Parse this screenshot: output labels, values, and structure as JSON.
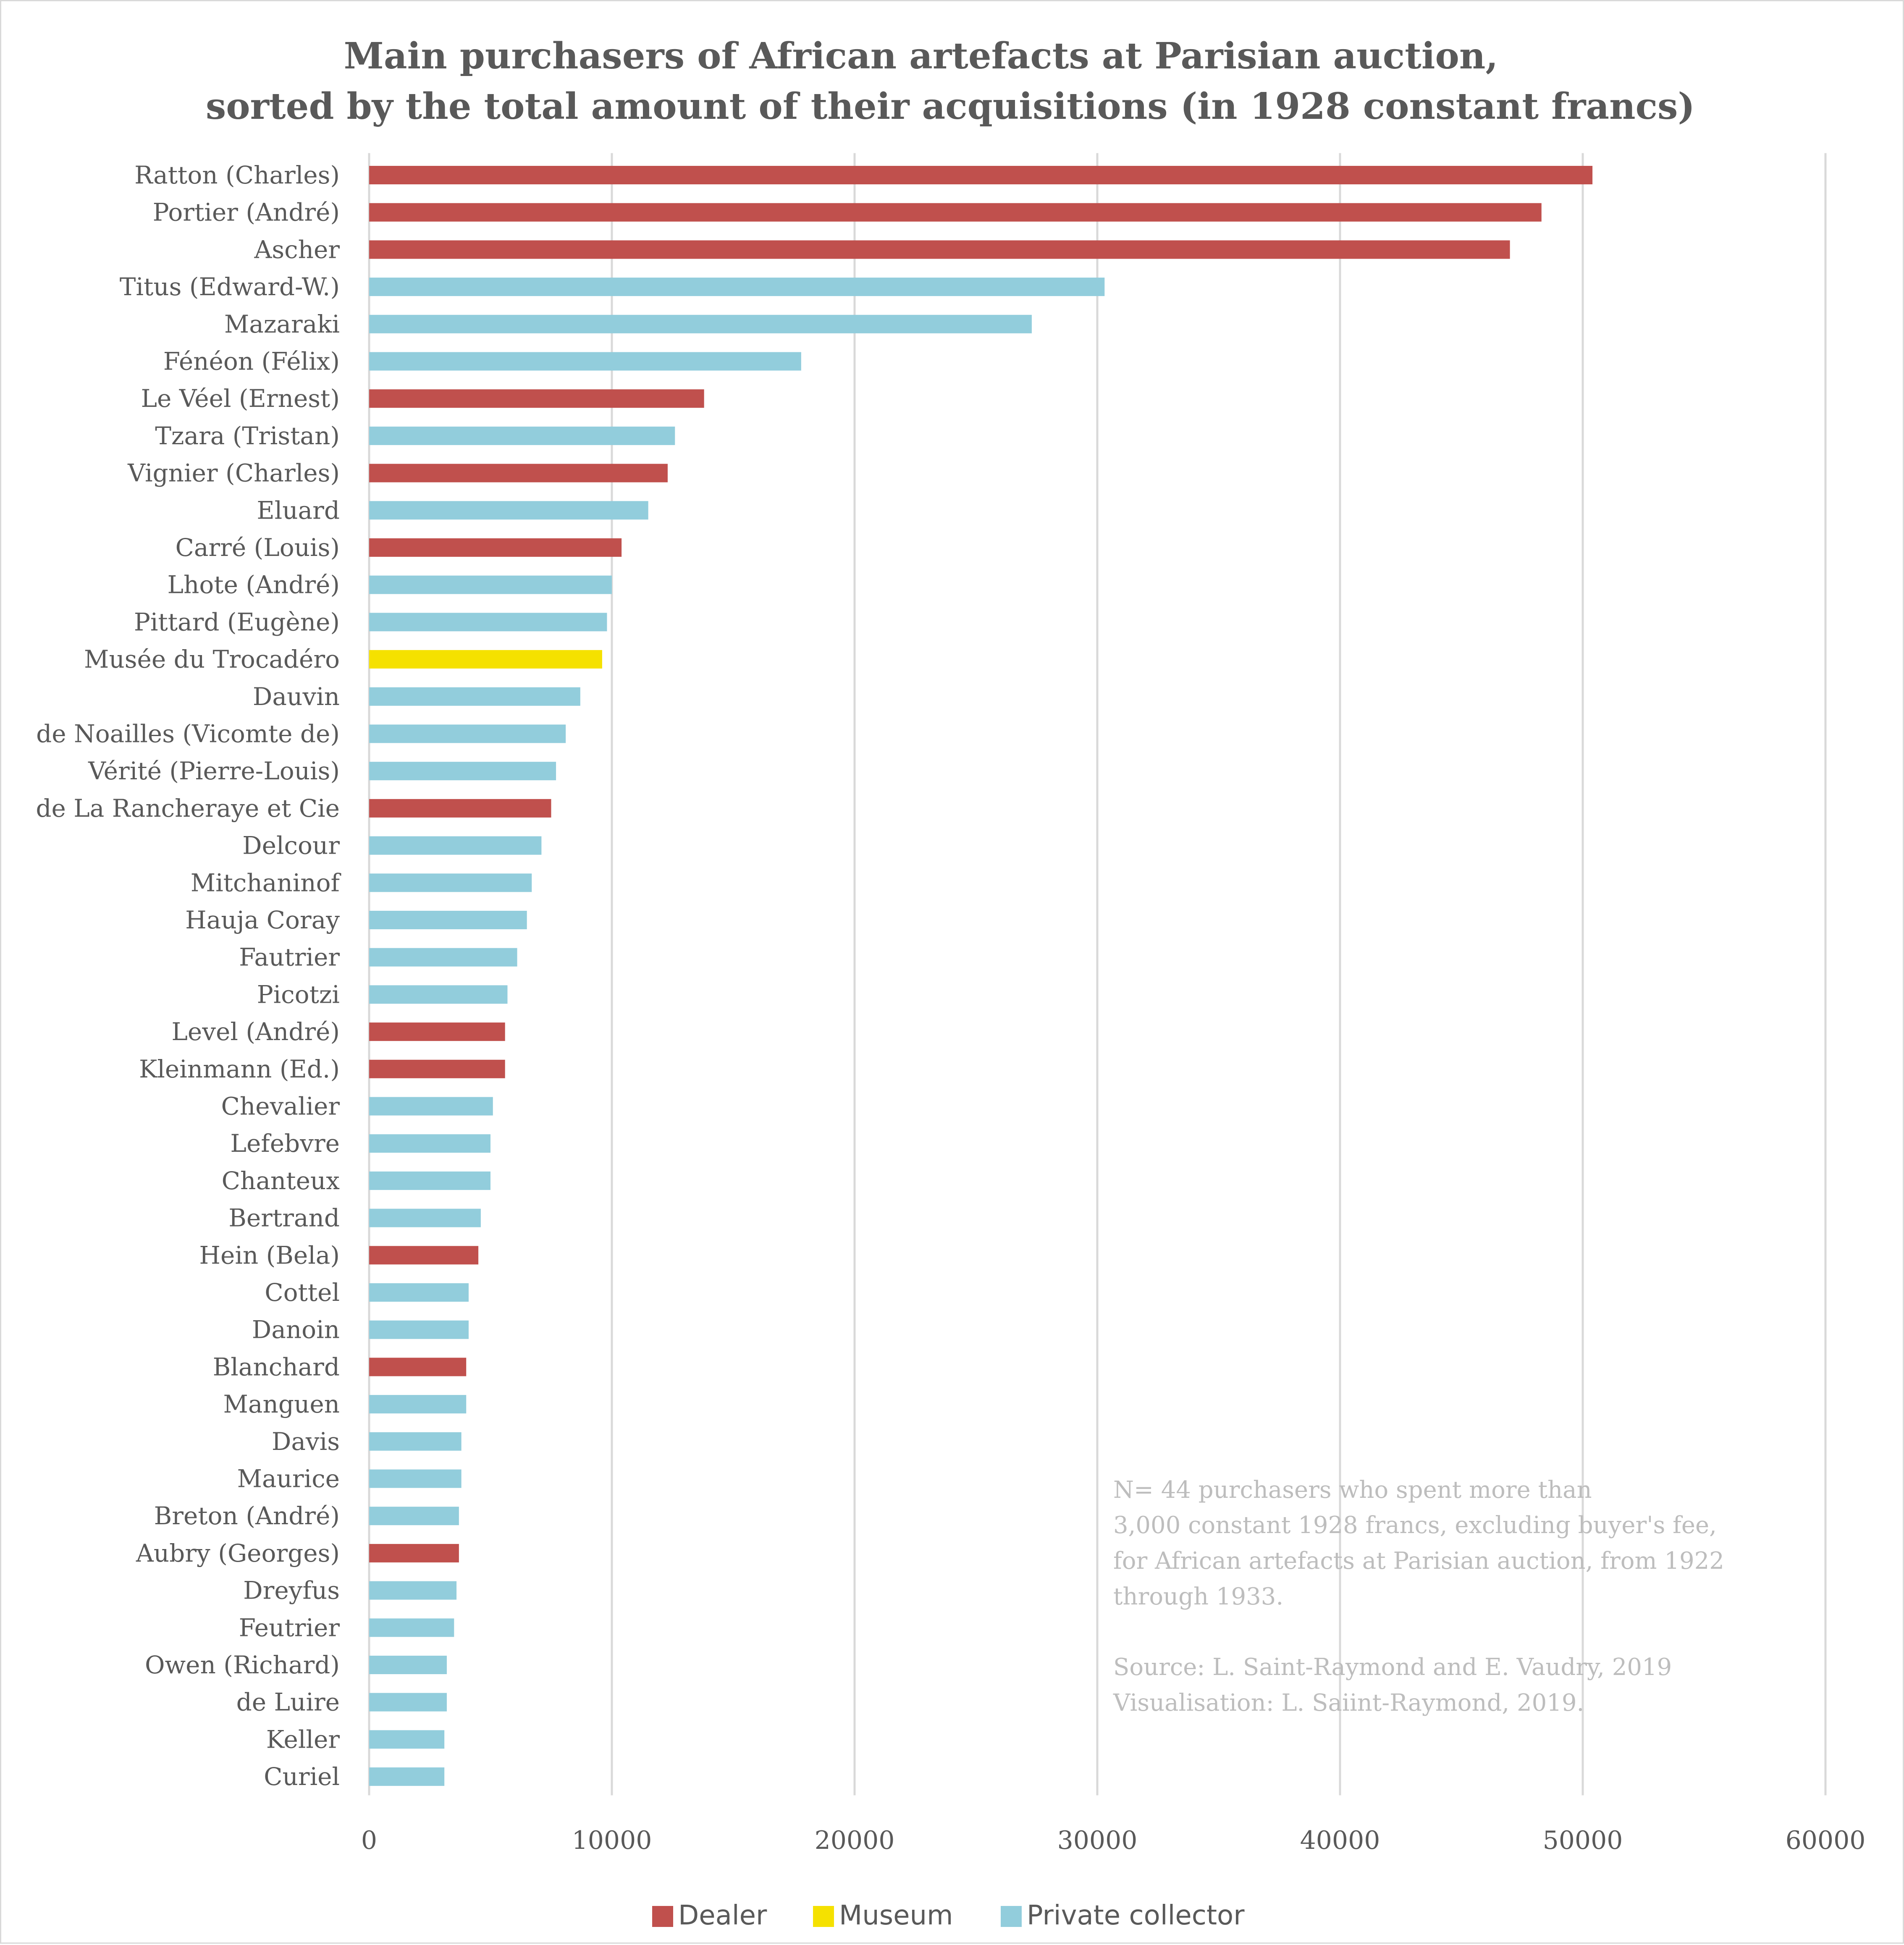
{
  "chart_data": {
    "type": "bar",
    "orientation": "horizontal",
    "title": [
      "Main purchasers of African artefacts at Parisian auction,",
      "sorted by the total amount of their acquisitions (in 1928 constant francs)"
    ],
    "xlabel": "",
    "ylabel": "",
    "xlim": [
      0,
      60000
    ],
    "x_ticks": [
      0,
      10000,
      20000,
      30000,
      40000,
      50000,
      60000
    ],
    "grid": "vertical",
    "legend_position": "bottom",
    "legend": [
      {
        "name": "Dealer",
        "color": "#c0504d"
      },
      {
        "name": "Museum",
        "color": "#f5e100"
      },
      {
        "name": "Private collector",
        "color": "#92cddc"
      }
    ],
    "categories": [
      "Ratton (Charles)",
      "Portier (André)",
      "Ascher",
      "Titus (Edward-W.)",
      "Mazaraki",
      "Fénéon (Félix)",
      "Le Véel (Ernest)",
      "Tzara (Tristan)",
      "Vignier (Charles)",
      "Eluard",
      "Carré (Louis)",
      "Lhote (André)",
      "Pittard (Eugène)",
      "Musée du Trocadéro",
      "Dauvin",
      "de Noailles (Vicomte de)",
      "Vérité (Pierre-Louis)",
      "de La Rancheraye et Cie",
      "Delcour",
      "Mitchaninof",
      "Hauja Coray",
      "Fautrier",
      "Picotzi",
      "Level (André)",
      "Kleinmann (Ed.)",
      "Chevalier",
      "Lefebvre",
      "Chanteux",
      "Bertrand",
      "Hein (Bela)",
      "Cottel",
      "Danoin",
      "Blanchard",
      "Manguen",
      "Davis",
      "Maurice",
      "Breton (André)",
      "Aubry (Georges)",
      "Dreyfus",
      "Feutrier",
      "Owen (Richard)",
      "de Luire",
      "Keller",
      "Curiel"
    ],
    "values": [
      50400,
      48300,
      47000,
      30300,
      27300,
      17800,
      13800,
      12600,
      12300,
      11500,
      10400,
      10000,
      9800,
      9600,
      8700,
      8100,
      7700,
      7500,
      7100,
      6700,
      6500,
      6100,
      5700,
      5600,
      5600,
      5100,
      5000,
      5000,
      4600,
      4500,
      4100,
      4100,
      4000,
      4000,
      3800,
      3800,
      3700,
      3700,
      3600,
      3500,
      3200,
      3200,
      3100,
      3100
    ],
    "types": [
      "Dealer",
      "Dealer",
      "Dealer",
      "Private collector",
      "Private collector",
      "Private collector",
      "Dealer",
      "Private collector",
      "Dealer",
      "Private collector",
      "Dealer",
      "Private collector",
      "Private collector",
      "Museum",
      "Private collector",
      "Private collector",
      "Private collector",
      "Dealer",
      "Private collector",
      "Private collector",
      "Private collector",
      "Private collector",
      "Private collector",
      "Dealer",
      "Dealer",
      "Private collector",
      "Private collector",
      "Private collector",
      "Private collector",
      "Dealer",
      "Private collector",
      "Private collector",
      "Dealer",
      "Private collector",
      "Private collector",
      "Private collector",
      "Private collector",
      "Dealer",
      "Private collector",
      "Private collector",
      "Private collector",
      "Private collector",
      "Private collector",
      "Private collector"
    ],
    "annotations": [
      "N= 44 purchasers who spent more than",
      "3,000 constant 1928 francs, excluding buyer's fee,",
      "for African artefacts at Parisian auction, from 1922",
      "through 1933.",
      "",
      "Source: L. Saint-Raymond and E. Vaudry, 2019",
      "Visualisation: L. Saiint-Raymond, 2019."
    ]
  }
}
